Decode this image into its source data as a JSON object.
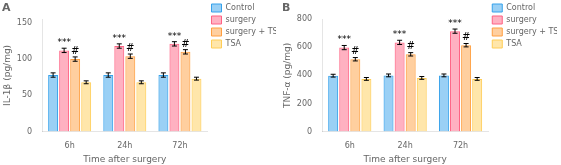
{
  "chart_data": [
    {
      "type": "bar",
      "title": "A",
      "xlabel": "Time after surgery",
      "ylabel": "IL-1β (pg/mg)",
      "categories": [
        "6h",
        "24h",
        "72h"
      ],
      "series": [
        {
          "name": "Control",
          "values": [
            78,
            78,
            78
          ],
          "errors": [
            3,
            3,
            3
          ]
        },
        {
          "name": "surgery",
          "values": [
            112,
            118,
            121
          ],
          "errors": [
            3,
            3,
            3
          ]
        },
        {
          "name": "surgery + TSA",
          "values": [
            100,
            104,
            110
          ],
          "errors": [
            3,
            3,
            3
          ]
        },
        {
          "name": "TSA",
          "values": [
            68,
            68,
            73
          ],
          "errors": [
            2,
            2,
            2
          ]
        }
      ],
      "ylim": [
        0,
        155
      ],
      "yticks": [
        0,
        50,
        100,
        150
      ],
      "grid": false,
      "legend": "upper right",
      "annotations": [
        {
          "text": "***",
          "category": "6h",
          "series": "surgery",
          "y": 116
        },
        {
          "text": "***",
          "category": "24h",
          "series": "surgery",
          "y": 122
        },
        {
          "text": "***",
          "category": "72h",
          "series": "surgery",
          "y": 125
        },
        {
          "text": "#",
          "category": "6h",
          "series": "surgery + TSA",
          "y": 104
        },
        {
          "text": "#",
          "category": "24h",
          "series": "surgery + TSA",
          "y": 108
        },
        {
          "text": "#",
          "category": "72h",
          "series": "surgery + TSA",
          "y": 114
        }
      ]
    },
    {
      "type": "bar",
      "title": "B",
      "xlabel": "Time after surgery",
      "ylabel": "TNF-α (pg/mg)",
      "categories": [
        "6h",
        "24h",
        "72h"
      ],
      "series": [
        {
          "name": "Control",
          "values": [
            398,
            400,
            400
          ],
          "errors": [
            10,
            10,
            10
          ]
        },
        {
          "name": "surgery",
          "values": [
            598,
            635,
            715
          ],
          "errors": [
            15,
            15,
            15
          ]
        },
        {
          "name": "surgery + TSA",
          "values": [
            515,
            550,
            615
          ],
          "errors": [
            12,
            12,
            12
          ]
        },
        {
          "name": "TSA",
          "values": [
            375,
            382,
            375
          ],
          "errors": [
            10,
            10,
            10
          ]
        }
      ],
      "ylim": [
        0,
        800
      ],
      "yticks": [
        0,
        200,
        400,
        600,
        800
      ],
      "grid": false,
      "legend": "upper right",
      "annotations": [
        {
          "text": "***",
          "category": "6h",
          "series": "surgery",
          "y": 620
        },
        {
          "text": "***",
          "category": "24h",
          "series": "surgery",
          "y": 660
        },
        {
          "text": "***",
          "category": "72h",
          "series": "surgery",
          "y": 738
        },
        {
          "text": "#",
          "category": "6h",
          "series": "surgery + TSA",
          "y": 532
        },
        {
          "text": "#",
          "category": "24h",
          "series": "surgery + TSA",
          "y": 568
        },
        {
          "text": "#",
          "category": "72h",
          "series": "surgery + TSA",
          "y": 635
        }
      ]
    }
  ]
}
